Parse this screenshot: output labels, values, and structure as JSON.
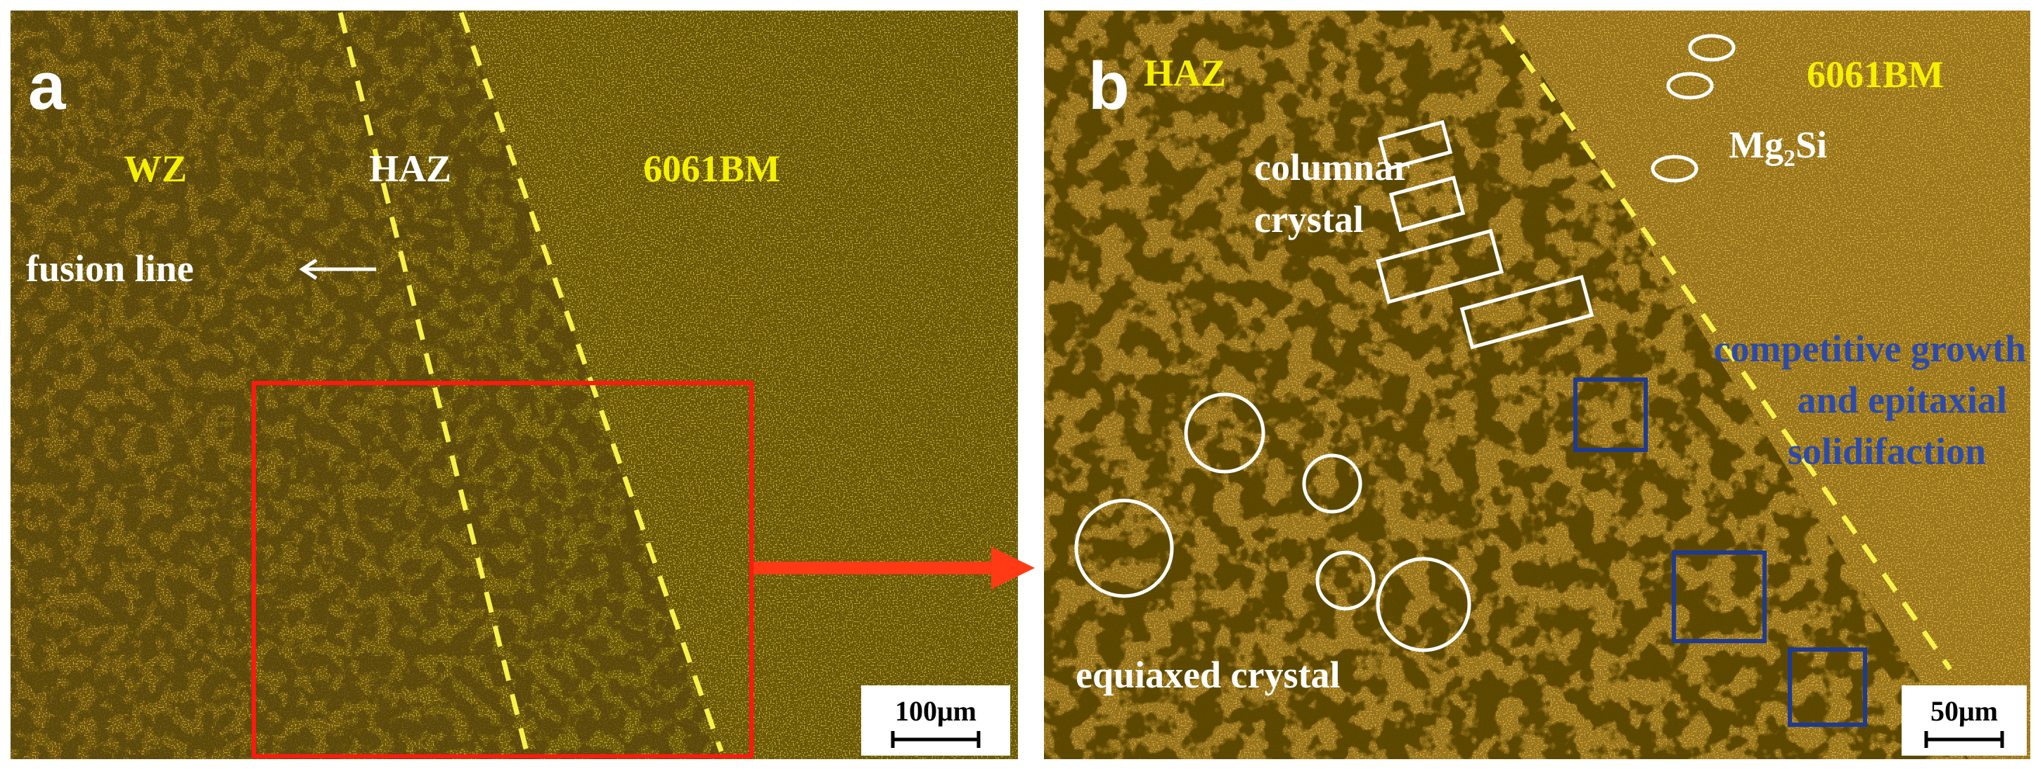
{
  "panel_a": {
    "label": "a",
    "wz": "WZ",
    "haz": "HAZ",
    "bm": "6061BM",
    "fusion_line": "fusion line",
    "scale_bar": "100μm"
  },
  "panel_b": {
    "label": "b",
    "haz": "HAZ",
    "bm": "6061BM",
    "mg2si": {
      "base": "Mg",
      "sub": "2",
      "rest": "Si"
    },
    "columnar": [
      "columnar",
      "crystal"
    ],
    "competitive": [
      "competitive growth",
      "and epitaxial",
      "solidifaction"
    ],
    "equiaxed": "equiaxed crystal",
    "scale_bar": "50μm"
  }
}
